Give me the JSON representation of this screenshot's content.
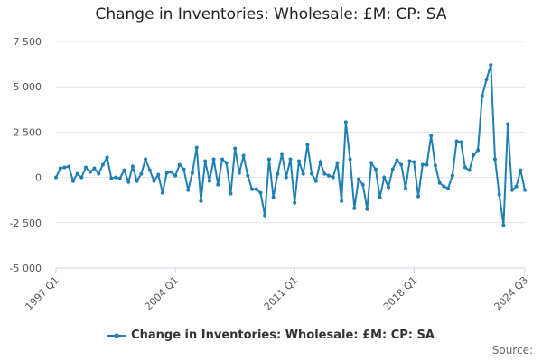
{
  "colors": {
    "series": "#1f7fb4",
    "grid": "#e2e2e2"
  },
  "credit": "Source:",
  "chart_data": {
    "type": "line",
    "title": "Change in Inventories: Wholesale: £M: CP: SA",
    "xlabel": "",
    "ylabel": "",
    "ylim": [
      -5000,
      7500
    ],
    "yticks": [
      -5000,
      -2500,
      0,
      2500,
      5000,
      7500
    ],
    "ytick_labels": [
      "-5 000",
      "-2 500",
      "0",
      "2 500",
      "5 000",
      "7 500"
    ],
    "xtick_labels": [
      "1997 Q1",
      "2004 Q1",
      "2011 Q1",
      "2018 Q1",
      "2024 Q3"
    ],
    "xtick_indices": [
      0,
      28,
      56,
      84,
      110
    ],
    "grid": true,
    "legend": "bottom",
    "series": [
      {
        "name": "Change in Inventories: Wholesale: £M: CP: SA",
        "values": [
          0,
          500,
          550,
          600,
          -200,
          200,
          0,
          550,
          300,
          500,
          200,
          700,
          1100,
          -50,
          0,
          -50,
          400,
          -250,
          600,
          -200,
          200,
          1000,
          400,
          -200,
          150,
          -850,
          250,
          300,
          100,
          700,
          450,
          -700,
          250,
          1650,
          -1300,
          900,
          -200,
          1000,
          -400,
          1000,
          800,
          -900,
          1600,
          250,
          1200,
          100,
          -650,
          -650,
          -850,
          -2100,
          1000,
          -1100,
          200,
          1300,
          0,
          1000,
          -1400,
          900,
          200,
          1800,
          200,
          -200,
          850,
          200,
          100,
          0,
          800,
          -1300,
          3050,
          1000,
          -1700,
          -100,
          -400,
          -1750,
          800,
          450,
          -1100,
          0,
          -550,
          450,
          950,
          700,
          -600,
          900,
          850,
          -1050,
          700,
          700,
          2300,
          650,
          -300,
          -500,
          -600,
          100,
          2000,
          1950,
          550,
          400,
          1250,
          1500,
          4500,
          5400,
          6200,
          1000,
          -950,
          -2650,
          2950,
          -700,
          -500,
          400,
          -700
        ]
      }
    ]
  }
}
